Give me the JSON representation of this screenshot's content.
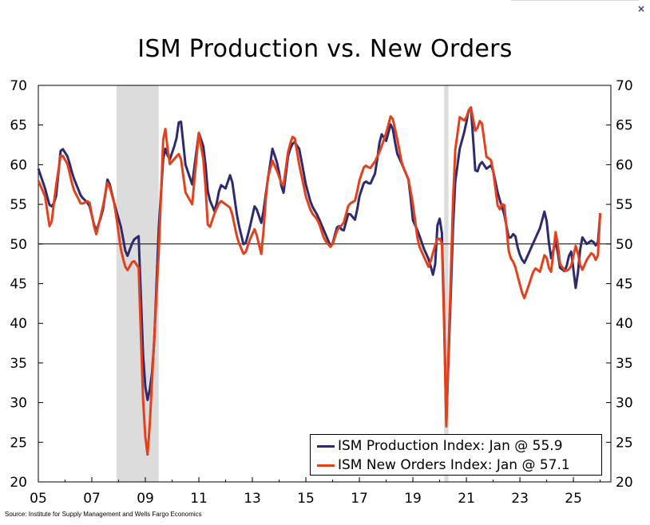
{
  "window": {
    "close_label": "×"
  },
  "title": "ISM Production vs. New Orders",
  "source": "Source: Institute for Supply Management and Wells Fargo Economics",
  "chart_data": {
    "type": "line",
    "title": "ISM Production vs. New Orders",
    "xlabel": "",
    "ylabel": "",
    "x_tick_labels": [
      "05",
      "07",
      "09",
      "11",
      "13",
      "15",
      "17",
      "19",
      "21",
      "23",
      "25"
    ],
    "x_tick_years": [
      2005,
      2007,
      2009,
      2011,
      2013,
      2015,
      2017,
      2019,
      2021,
      2023,
      2025
    ],
    "xlim": [
      2005.0,
      2026.4
    ],
    "ylim": [
      20,
      70
    ],
    "y_ticks": [
      20,
      25,
      30,
      35,
      40,
      45,
      50,
      55,
      60,
      65,
      70
    ],
    "reference_line": 50,
    "recessions": [
      [
        2007.92,
        2009.5
      ],
      [
        2020.17,
        2020.33
      ]
    ],
    "grid": false,
    "legend_position": "bottom-right",
    "colors": {
      "production": "#2e2a6e",
      "new_orders": "#e4401c",
      "recession": "#dcdcdc"
    },
    "series": [
      {
        "name": "ISM Production Index: Jan @ 55.9",
        "key": "production",
        "anchors": [
          [
            2005.0,
            59.5
          ],
          [
            2005.25,
            57.0
          ],
          [
            2005.45,
            54.5
          ],
          [
            2005.65,
            55.5
          ],
          [
            2005.85,
            62.3
          ],
          [
            2006.1,
            61.0
          ],
          [
            2006.3,
            58.5
          ],
          [
            2006.6,
            56.0
          ],
          [
            2006.9,
            55.0
          ],
          [
            2007.15,
            51.5
          ],
          [
            2007.4,
            54.0
          ],
          [
            2007.6,
            58.5
          ],
          [
            2007.85,
            55.0
          ],
          [
            2008.1,
            52.0
          ],
          [
            2008.3,
            48.2
          ],
          [
            2008.55,
            50.5
          ],
          [
            2008.75,
            51.0
          ],
          [
            2008.95,
            33.0
          ],
          [
            2009.1,
            30.0
          ],
          [
            2009.3,
            35.0
          ],
          [
            2009.5,
            52.0
          ],
          [
            2009.7,
            62.5
          ],
          [
            2009.9,
            60.5
          ],
          [
            2010.15,
            63.0
          ],
          [
            2010.3,
            66.5
          ],
          [
            2010.5,
            60.0
          ],
          [
            2010.75,
            57.5
          ],
          [
            2011.0,
            64.0
          ],
          [
            2011.2,
            62.0
          ],
          [
            2011.35,
            56.0
          ],
          [
            2011.6,
            54.0
          ],
          [
            2011.8,
            57.5
          ],
          [
            2012.0,
            57.0
          ],
          [
            2012.2,
            59.0
          ],
          [
            2012.45,
            53.0
          ],
          [
            2012.7,
            49.5
          ],
          [
            2012.9,
            52.0
          ],
          [
            2013.1,
            55.0
          ],
          [
            2013.35,
            52.5
          ],
          [
            2013.55,
            57.5
          ],
          [
            2013.75,
            62.0
          ],
          [
            2013.95,
            60.0
          ],
          [
            2014.15,
            56.0
          ],
          [
            2014.35,
            61.5
          ],
          [
            2014.55,
            63.0
          ],
          [
            2014.75,
            62.0
          ],
          [
            2015.0,
            57.5
          ],
          [
            2015.2,
            55.0
          ],
          [
            2015.45,
            53.5
          ],
          [
            2015.7,
            51.5
          ],
          [
            2015.95,
            49.5
          ],
          [
            2016.2,
            52.5
          ],
          [
            2016.4,
            51.5
          ],
          [
            2016.6,
            54.0
          ],
          [
            2016.85,
            53.0
          ],
          [
            2017.0,
            56.0
          ],
          [
            2017.2,
            58.0
          ],
          [
            2017.4,
            57.5
          ],
          [
            2017.6,
            59.0
          ],
          [
            2017.8,
            64.0
          ],
          [
            2018.0,
            63.0
          ],
          [
            2018.2,
            65.5
          ],
          [
            2018.4,
            61.5
          ],
          [
            2018.6,
            60.0
          ],
          [
            2018.85,
            58.0
          ],
          [
            2019.0,
            53.0
          ],
          [
            2019.2,
            51.5
          ],
          [
            2019.4,
            49.5
          ],
          [
            2019.6,
            48.0
          ],
          [
            2019.8,
            45.5
          ],
          [
            2019.95,
            54.3
          ],
          [
            2020.1,
            51.0
          ],
          [
            2020.25,
            27.5
          ],
          [
            2020.4,
            42.0
          ],
          [
            2020.55,
            57.0
          ],
          [
            2020.75,
            62.0
          ],
          [
            2020.95,
            64.5
          ],
          [
            2021.15,
            68.0
          ],
          [
            2021.35,
            58.5
          ],
          [
            2021.55,
            60.5
          ],
          [
            2021.75,
            59.5
          ],
          [
            2021.95,
            60.0
          ],
          [
            2022.2,
            56.0
          ],
          [
            2022.4,
            54.0
          ],
          [
            2022.6,
            50.5
          ],
          [
            2022.8,
            51.5
          ],
          [
            2022.95,
            49.0
          ],
          [
            2023.15,
            47.5
          ],
          [
            2023.35,
            49.0
          ],
          [
            2023.55,
            50.5
          ],
          [
            2023.75,
            52.0
          ],
          [
            2023.95,
            54.5
          ],
          [
            2024.15,
            48.0
          ],
          [
            2024.35,
            50.5
          ],
          [
            2024.5,
            47.0
          ],
          [
            2024.7,
            46.5
          ],
          [
            2024.9,
            49.5
          ],
          [
            2025.1,
            44.0
          ],
          [
            2025.3,
            51.0
          ],
          [
            2025.5,
            50.0
          ],
          [
            2025.7,
            50.5
          ],
          [
            2025.9,
            49.5
          ],
          [
            2026.05,
            55.9
          ]
        ],
        "values": []
      },
      {
        "name": "ISM New Orders Index: Jan @ 57.1",
        "key": "new_orders",
        "anchors": [
          [
            2005.0,
            58.0
          ],
          [
            2005.25,
            56.0
          ],
          [
            2005.45,
            51.5
          ],
          [
            2005.65,
            57.0
          ],
          [
            2005.85,
            61.5
          ],
          [
            2006.1,
            60.0
          ],
          [
            2006.3,
            57.0
          ],
          [
            2006.6,
            55.0
          ],
          [
            2006.9,
            55.5
          ],
          [
            2007.15,
            51.0
          ],
          [
            2007.4,
            54.5
          ],
          [
            2007.6,
            58.0
          ],
          [
            2007.85,
            55.0
          ],
          [
            2008.1,
            49.0
          ],
          [
            2008.3,
            46.5
          ],
          [
            2008.55,
            48.0
          ],
          [
            2008.75,
            47.0
          ],
          [
            2008.95,
            27.0
          ],
          [
            2009.1,
            23.0
          ],
          [
            2009.3,
            36.0
          ],
          [
            2009.5,
            49.0
          ],
          [
            2009.7,
            66.0
          ],
          [
            2009.9,
            60.0
          ],
          [
            2010.15,
            61.0
          ],
          [
            2010.3,
            61.5
          ],
          [
            2010.5,
            56.5
          ],
          [
            2010.75,
            55.0
          ],
          [
            2011.0,
            64.0
          ],
          [
            2011.2,
            60.0
          ],
          [
            2011.35,
            51.5
          ],
          [
            2011.6,
            54.0
          ],
          [
            2011.8,
            55.5
          ],
          [
            2012.0,
            55.0
          ],
          [
            2012.2,
            54.5
          ],
          [
            2012.45,
            50.5
          ],
          [
            2012.7,
            48.5
          ],
          [
            2012.9,
            50.5
          ],
          [
            2013.1,
            52.0
          ],
          [
            2013.35,
            48.5
          ],
          [
            2013.55,
            58.0
          ],
          [
            2013.75,
            60.5
          ],
          [
            2013.95,
            59.0
          ],
          [
            2014.15,
            57.0
          ],
          [
            2014.35,
            62.0
          ],
          [
            2014.55,
            64.0
          ],
          [
            2014.75,
            60.0
          ],
          [
            2015.0,
            56.0
          ],
          [
            2015.2,
            54.0
          ],
          [
            2015.45,
            53.0
          ],
          [
            2015.7,
            50.5
          ],
          [
            2015.95,
            49.5
          ],
          [
            2016.2,
            52.0
          ],
          [
            2016.4,
            52.5
          ],
          [
            2016.6,
            55.0
          ],
          [
            2016.85,
            55.5
          ],
          [
            2017.0,
            58.0
          ],
          [
            2017.2,
            60.0
          ],
          [
            2017.4,
            59.5
          ],
          [
            2017.6,
            60.5
          ],
          [
            2017.8,
            62.0
          ],
          [
            2018.0,
            64.0
          ],
          [
            2018.2,
            66.5
          ],
          [
            2018.4,
            63.5
          ],
          [
            2018.6,
            60.0
          ],
          [
            2018.85,
            58.0
          ],
          [
            2019.0,
            55.0
          ],
          [
            2019.2,
            50.0
          ],
          [
            2019.4,
            48.5
          ],
          [
            2019.6,
            47.0
          ],
          [
            2019.8,
            49.5
          ],
          [
            2019.95,
            51.0
          ],
          [
            2020.1,
            50.0
          ],
          [
            2020.25,
            27.0
          ],
          [
            2020.4,
            44.0
          ],
          [
            2020.55,
            61.0
          ],
          [
            2020.75,
            66.0
          ],
          [
            2020.95,
            65.5
          ],
          [
            2021.15,
            67.5
          ],
          [
            2021.35,
            64.0
          ],
          [
            2021.55,
            66.0
          ],
          [
            2021.75,
            61.0
          ],
          [
            2021.95,
            60.5
          ],
          [
            2022.2,
            54.0
          ],
          [
            2022.4,
            55.5
          ],
          [
            2022.6,
            48.5
          ],
          [
            2022.8,
            47.5
          ],
          [
            2022.95,
            45.5
          ],
          [
            2023.15,
            43.0
          ],
          [
            2023.35,
            45.0
          ],
          [
            2023.55,
            47.0
          ],
          [
            2023.75,
            46.5
          ],
          [
            2023.95,
            49.0
          ],
          [
            2024.15,
            46.0
          ],
          [
            2024.35,
            52.0
          ],
          [
            2024.5,
            47.5
          ],
          [
            2024.7,
            46.5
          ],
          [
            2024.9,
            47.0
          ],
          [
            2025.1,
            50.0
          ],
          [
            2025.3,
            46.5
          ],
          [
            2025.5,
            48.0
          ],
          [
            2025.7,
            49.0
          ],
          [
            2025.9,
            47.5
          ],
          [
            2026.05,
            57.1
          ]
        ],
        "values": []
      }
    ]
  }
}
